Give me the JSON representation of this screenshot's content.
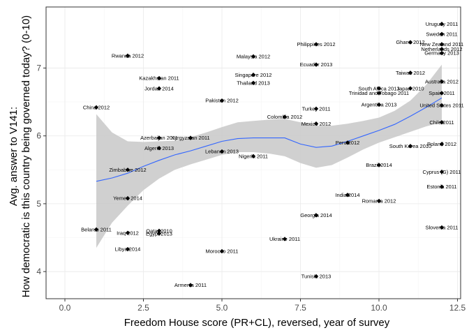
{
  "chart_data": {
    "type": "scatter",
    "xlabel": "Freedom House score (PR+CL), reversed, year of survey",
    "ylabel_lines": [
      "Avg. answer to V141:",
      "How democratic is this country being governed today? (0-10)"
    ],
    "xlim": [
      -0.6,
      12.6
    ],
    "ylim": [
      3.6,
      7.9
    ],
    "x_ticks": [
      0.0,
      2.5,
      5.0,
      7.5,
      10.0,
      12.5
    ],
    "x_tick_labels": [
      "0.0",
      "2.5",
      "5.0",
      "7.5",
      "10.0",
      "12.5"
    ],
    "y_ticks": [
      4,
      5,
      6,
      7
    ],
    "y_tick_labels": [
      "4",
      "5",
      "6",
      "7"
    ],
    "grid": true,
    "points": [
      {
        "label": "Uruguay 2011",
        "x": 12,
        "y": 7.65
      },
      {
        "label": "Sweden 2011",
        "x": 12,
        "y": 7.5
      },
      {
        "label": "Ghana 2012",
        "x": 11,
        "y": 7.38
      },
      {
        "label": "New Zealand 2011",
        "x": 12,
        "y": 7.35
      },
      {
        "label": "Netherlands 2012",
        "x": 12,
        "y": 7.28
      },
      {
        "label": "Germany 2013",
        "x": 12,
        "y": 7.22
      },
      {
        "label": "Philippines 2012",
        "x": 8,
        "y": 7.35
      },
      {
        "label": "Rwanda 2012",
        "x": 2,
        "y": 7.18
      },
      {
        "label": "Malaysia 2012",
        "x": 6,
        "y": 7.17
      },
      {
        "label": "Ecuador 2013",
        "x": 8,
        "y": 7.05
      },
      {
        "label": "Taiwan 2012",
        "x": 11,
        "y": 6.93
      },
      {
        "label": "Singapore 2012",
        "x": 6,
        "y": 6.9
      },
      {
        "label": "Kazakhstan 2011",
        "x": 3,
        "y": 6.85
      },
      {
        "label": "Australia 2012",
        "x": 12,
        "y": 6.8
      },
      {
        "label": "Thailand 2013",
        "x": 6,
        "y": 6.78
      },
      {
        "label": "South Africa 2013",
        "x": 10,
        "y": 6.7
      },
      {
        "label": "Japan 2010",
        "x": 11,
        "y": 6.7
      },
      {
        "label": "Jordan 2014",
        "x": 3,
        "y": 6.7
      },
      {
        "label": "Trinidad and Tobago 2011",
        "x": 10,
        "y": 6.63
      },
      {
        "label": "Spain 2011",
        "x": 12,
        "y": 6.63
      },
      {
        "label": "Pakistan 2012",
        "x": 5,
        "y": 6.52
      },
      {
        "label": "Argentina 2013",
        "x": 10,
        "y": 6.46
      },
      {
        "label": "United States 2011",
        "x": 12,
        "y": 6.45
      },
      {
        "label": "China 2012",
        "x": 1,
        "y": 6.42
      },
      {
        "label": "Turkey 2011",
        "x": 8,
        "y": 6.4
      },
      {
        "label": "Colombia 2012",
        "x": 7,
        "y": 6.28
      },
      {
        "label": "Mexico 2012",
        "x": 8,
        "y": 6.18
      },
      {
        "label": "Chile 2011",
        "x": 12,
        "y": 6.2
      },
      {
        "label": "Azerbaijan 2011",
        "x": 3,
        "y": 5.97
      },
      {
        "label": "Kyrgyzstan 2011",
        "x": 4,
        "y": 5.97
      },
      {
        "label": "Peru 2012",
        "x": 9,
        "y": 5.9
      },
      {
        "label": "Poland 2012",
        "x": 12,
        "y": 5.88
      },
      {
        "label": "South Korea 2010",
        "x": 11,
        "y": 5.85
      },
      {
        "label": "Algeria 2013",
        "x": 3,
        "y": 5.82
      },
      {
        "label": "Lebanon 2013",
        "x": 5,
        "y": 5.77
      },
      {
        "label": "Nigeria 2011",
        "x": 6,
        "y": 5.7
      },
      {
        "label": "Brazil 2014",
        "x": 10,
        "y": 5.57
      },
      {
        "label": "Zimbabwe 2012",
        "x": 2,
        "y": 5.5
      },
      {
        "label": "Cyprus (G) 2011",
        "x": 12,
        "y": 5.47
      },
      {
        "label": "Estonia 2011",
        "x": 12,
        "y": 5.25
      },
      {
        "label": "India 2014",
        "x": 9,
        "y": 5.13
      },
      {
        "label": "Yemen 2014",
        "x": 2,
        "y": 5.08
      },
      {
        "label": "Romania 2012",
        "x": 10,
        "y": 5.04
      },
      {
        "label": "Georgia 2014",
        "x": 8,
        "y": 4.83
      },
      {
        "label": "Slovenia 2011",
        "x": 12,
        "y": 4.65
      },
      {
        "label": "Belarus 2011",
        "x": 1,
        "y": 4.62
      },
      {
        "label": "Iraq 2012",
        "x": 2,
        "y": 4.57
      },
      {
        "label": "Qatar 2010",
        "x": 3,
        "y": 4.6
      },
      {
        "label": "Egypt 2013",
        "x": 3,
        "y": 4.56
      },
      {
        "label": "Ukraine 2011",
        "x": 7,
        "y": 4.48
      },
      {
        "label": "Libya 2014",
        "x": 2,
        "y": 4.33
      },
      {
        "label": "Morocco 2011",
        "x": 5,
        "y": 4.3
      },
      {
        "label": "Tunisia 2013",
        "x": 8,
        "y": 3.93
      },
      {
        "label": "Armenia 2011",
        "x": 4,
        "y": 3.8
      }
    ],
    "smooth": {
      "x": [
        1.0,
        1.5,
        2.0,
        2.5,
        3.0,
        3.5,
        4.0,
        4.5,
        5.0,
        5.5,
        6.0,
        6.5,
        7.0,
        7.5,
        8.0,
        8.5,
        9.0,
        9.5,
        10.0,
        10.5,
        11.0,
        11.5,
        12.0
      ],
      "y": [
        5.33,
        5.38,
        5.45,
        5.55,
        5.64,
        5.72,
        5.78,
        5.85,
        5.92,
        5.96,
        5.97,
        5.97,
        5.97,
        5.88,
        5.83,
        5.85,
        5.92,
        6.0,
        6.08,
        6.17,
        6.29,
        6.42,
        6.56
      ],
      "lower": [
        4.35,
        4.72,
        4.97,
        5.2,
        5.37,
        5.5,
        5.58,
        5.65,
        5.72,
        5.76,
        5.76,
        5.74,
        5.7,
        5.6,
        5.53,
        5.57,
        5.68,
        5.8,
        5.9,
        5.98,
        6.06,
        6.14,
        6.2
      ],
      "upper": [
        6.32,
        6.05,
        5.92,
        5.91,
        5.92,
        5.93,
        5.98,
        6.05,
        6.13,
        6.2,
        6.22,
        6.24,
        6.25,
        6.2,
        6.15,
        6.15,
        6.18,
        6.22,
        6.27,
        6.37,
        6.52,
        6.75,
        7.05
      ]
    },
    "colors": {
      "point": "#000000",
      "smooth_line": "#3366ff",
      "ribbon": "#c8c8c8"
    }
  }
}
